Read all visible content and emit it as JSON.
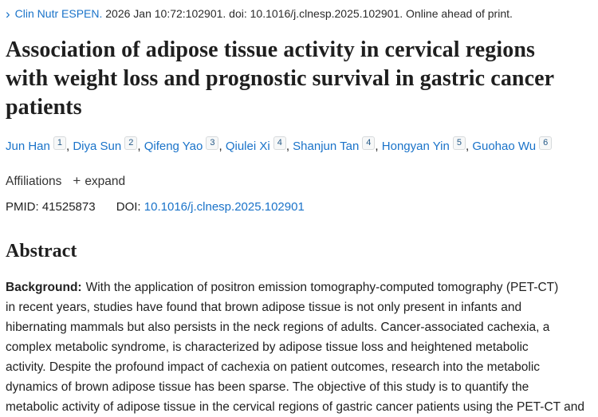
{
  "citation": {
    "journal": "Clin Nutr ESPEN.",
    "rest": " 2026 Jan 10:72:102901. doi: 10.1016/j.clnesp.2025.102901. Online ahead of print."
  },
  "title": "Association of adipose tissue activity in cervical regions with weight loss and prognostic survival in gastric cancer patients",
  "authors": [
    {
      "name": "Jun Han",
      "sup": "1"
    },
    {
      "name": "Diya Sun",
      "sup": "2"
    },
    {
      "name": "Qifeng Yao",
      "sup": "3"
    },
    {
      "name": "Qiulei Xi",
      "sup": "4"
    },
    {
      "name": "Shanjun Tan",
      "sup": "4"
    },
    {
      "name": "Hongyan Yin",
      "sup": "5"
    },
    {
      "name": "Guohao Wu",
      "sup": "6"
    }
  ],
  "affiliations": {
    "label": "Affiliations",
    "expand_label": "expand"
  },
  "ids": {
    "pmid_label": "PMID:",
    "pmid": "41525873",
    "doi_label": "DOI:",
    "doi": "10.1016/j.clnesp.2025.102901"
  },
  "abstract": {
    "heading": "Abstract",
    "background_label": "Background:",
    "lines": [
      "With the application of positron emission tomography-computed tomography (PET-CT)",
      "in recent years, studies have found that brown adipose tissue is not only present in infants and",
      "hibernating mammals but also persists in the neck regions of adults. Cancer-associated cachexia, a",
      "complex metabolic syndrome, is characterized by adipose tissue loss and heightened metabolic",
      "activity. Despite the profound impact of cachexia on patient outcomes, research into the metabolic",
      "dynamics of brown adipose tissue has been sparse. The objective of this study is to quantify the",
      "metabolic activity of adipose tissue in the cervical regions of gastric cancer patients using the PET-CT and"
    ]
  },
  "icons": {
    "journal_chevron": "›",
    "expand_plus": "+"
  },
  "colors": {
    "link_blue": "#1a73c9",
    "text_dark": "#212121",
    "sup_bg": "#f7f8f8",
    "sup_border": "#d7dadc",
    "sup_text": "#265a88"
  }
}
